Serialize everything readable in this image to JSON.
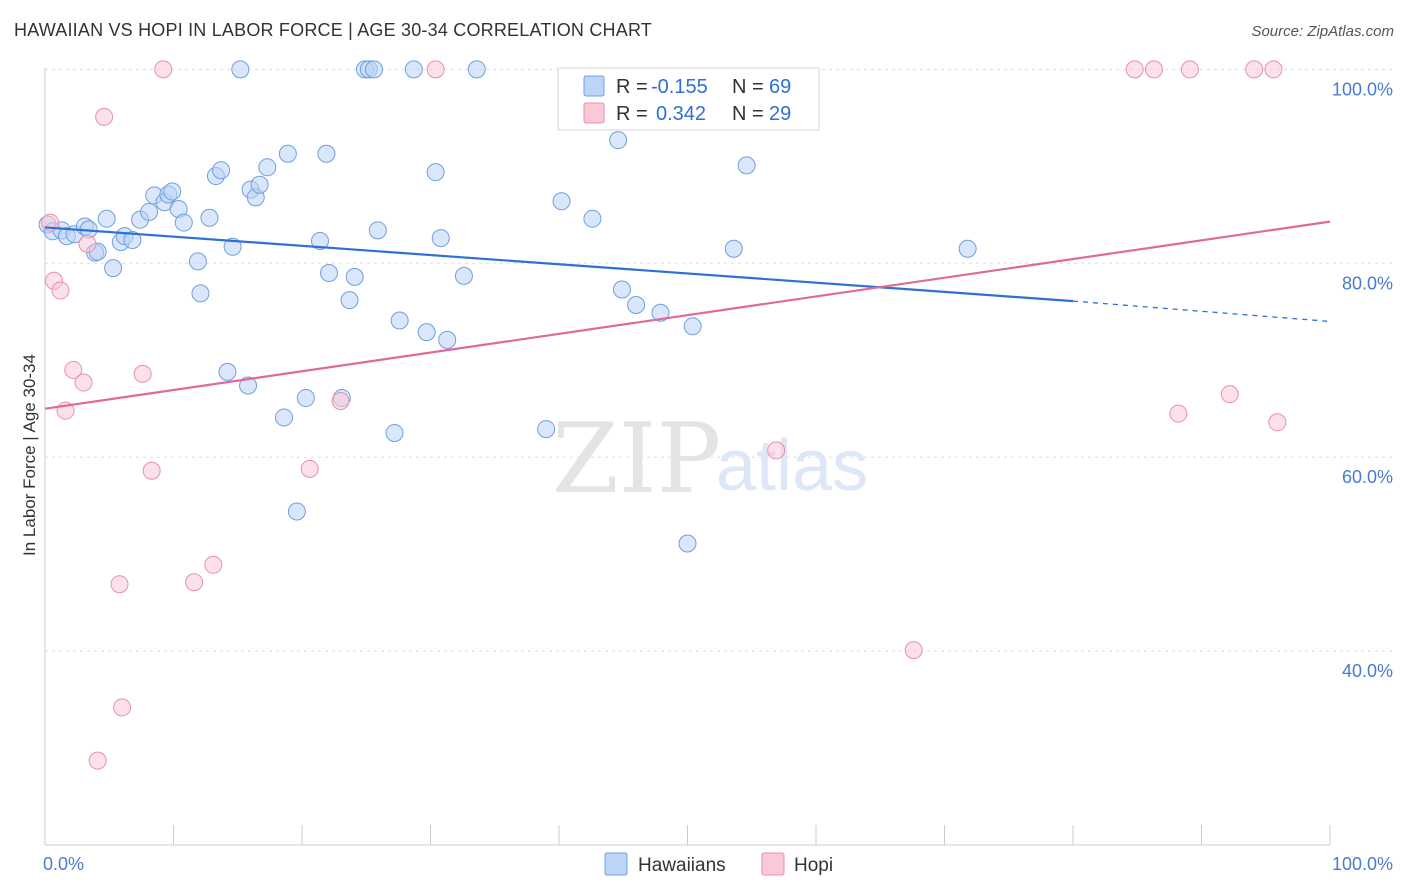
{
  "header": {
    "title": "HAWAIIAN VS HOPI IN LABOR FORCE | AGE 30-34 CORRELATION CHART",
    "source": "Source: ZipAtlas.com"
  },
  "watermark": {
    "zip": "ZIP",
    "atlas": "atlas"
  },
  "legend": {
    "rows": [
      {
        "r_label": "R =",
        "r_value": "-0.155",
        "n_label": "N =",
        "n_value": "69",
        "fill": "#bcd4f6",
        "stroke": "#6f9fe0"
      },
      {
        "r_label": "R =",
        "r_value": "0.342",
        "n_label": "N =",
        "n_value": "29",
        "fill": "#f9c9d8",
        "stroke": "#ea8fae"
      }
    ]
  },
  "bottom_legend": [
    {
      "label": "Hawaiians",
      "fill": "#bcd4f6",
      "stroke": "#6f9fe0"
    },
    {
      "label": "Hopi",
      "fill": "#f9c9d8",
      "stroke": "#ea8fae"
    }
  ],
  "chart_data": {
    "type": "scatter",
    "title": "HAWAIIAN VS HOPI IN LABOR FORCE | AGE 30-34 CORRELATION CHART",
    "xlabel": "",
    "ylabel": "In Labor Force | Age 30-34",
    "xlim": [
      0,
      100
    ],
    "ylim": [
      20,
      102
    ],
    "x_tick_labels": [
      "0.0%",
      "100.0%"
    ],
    "y_ticks": [
      40,
      60,
      80,
      100
    ],
    "y_tick_labels": [
      "40.0%",
      "60.0%",
      "80.0%",
      "100.0%"
    ],
    "grid": true,
    "colors": {
      "hawaiians_line": "#2f6fd6",
      "hopi_line": "#e0689a"
    },
    "series": [
      {
        "name": "Hawaiians",
        "fill": "#bcd4f6",
        "stroke": "#6f9fe0",
        "points": [
          [
            0.2,
            84.0
          ],
          [
            0.6,
            83.3
          ],
          [
            1.3,
            83.4
          ],
          [
            1.7,
            82.8
          ],
          [
            2.3,
            83.0
          ],
          [
            3.1,
            83.8
          ],
          [
            3.4,
            83.5
          ],
          [
            3.9,
            81.1
          ],
          [
            4.1,
            81.2
          ],
          [
            4.8,
            84.6
          ],
          [
            5.3,
            79.5
          ],
          [
            5.9,
            82.2
          ],
          [
            6.2,
            82.8
          ],
          [
            6.8,
            82.4
          ],
          [
            7.4,
            84.5
          ],
          [
            8.1,
            85.3
          ],
          [
            8.5,
            87.0
          ],
          [
            9.3,
            86.3
          ],
          [
            9.6,
            87.1
          ],
          [
            9.9,
            87.4
          ],
          [
            10.4,
            85.6
          ],
          [
            10.8,
            84.2
          ],
          [
            11.9,
            80.2
          ],
          [
            12.1,
            76.9
          ],
          [
            12.8,
            84.7
          ],
          [
            13.3,
            89.0
          ],
          [
            13.7,
            89.6
          ],
          [
            14.2,
            68.8
          ],
          [
            14.6,
            81.7
          ],
          [
            15.2,
            100.0
          ],
          [
            15.8,
            67.4
          ],
          [
            16.0,
            87.6
          ],
          [
            16.4,
            86.8
          ],
          [
            16.7,
            88.1
          ],
          [
            17.3,
            89.9
          ],
          [
            18.6,
            64.1
          ],
          [
            18.9,
            91.3
          ],
          [
            19.6,
            54.4
          ],
          [
            20.3,
            66.1
          ],
          [
            21.4,
            82.3
          ],
          [
            21.9,
            91.3
          ],
          [
            22.1,
            79.0
          ],
          [
            23.1,
            66.1
          ],
          [
            23.7,
            76.2
          ],
          [
            24.1,
            78.6
          ],
          [
            24.9,
            100.0
          ],
          [
            25.2,
            100.0
          ],
          [
            25.6,
            100.0
          ],
          [
            25.9,
            83.4
          ],
          [
            27.2,
            62.5
          ],
          [
            27.6,
            74.1
          ],
          [
            28.7,
            100.0
          ],
          [
            29.7,
            72.9
          ],
          [
            30.4,
            89.4
          ],
          [
            30.8,
            82.6
          ],
          [
            31.3,
            72.1
          ],
          [
            32.6,
            78.7
          ],
          [
            33.6,
            100.0
          ],
          [
            39.0,
            62.9
          ],
          [
            40.2,
            86.4
          ],
          [
            42.6,
            84.6
          ],
          [
            44.6,
            92.7
          ],
          [
            44.9,
            77.3
          ],
          [
            46.0,
            75.7
          ],
          [
            47.9,
            74.9
          ],
          [
            50.0,
            51.1
          ],
          [
            50.4,
            73.5
          ],
          [
            53.6,
            81.5
          ],
          [
            54.6,
            90.1
          ],
          [
            71.8,
            81.5
          ]
        ]
      },
      {
        "name": "Hopi",
        "fill": "#f9c9d8",
        "stroke": "#ea8fae",
        "points": [
          [
            0.4,
            84.2
          ],
          [
            0.7,
            78.2
          ],
          [
            1.2,
            77.2
          ],
          [
            1.6,
            64.8
          ],
          [
            2.2,
            69.0
          ],
          [
            3.0,
            67.7
          ],
          [
            3.3,
            82.0
          ],
          [
            4.1,
            28.7
          ],
          [
            4.6,
            95.1
          ],
          [
            5.8,
            46.9
          ],
          [
            6.0,
            34.2
          ],
          [
            7.6,
            68.6
          ],
          [
            8.3,
            58.6
          ],
          [
            9.2,
            100.0
          ],
          [
            11.6,
            47.1
          ],
          [
            13.1,
            48.9
          ],
          [
            20.6,
            58.8
          ],
          [
            23.0,
            65.8
          ],
          [
            30.4,
            100.0
          ],
          [
            56.9,
            60.7
          ],
          [
            67.6,
            40.1
          ],
          [
            84.8,
            100.0
          ],
          [
            86.3,
            100.0
          ],
          [
            88.2,
            64.5
          ],
          [
            89.1,
            100.0
          ],
          [
            92.2,
            66.5
          ],
          [
            94.1,
            100.0
          ],
          [
            95.6,
            100.0
          ],
          [
            95.9,
            63.6
          ]
        ]
      }
    ],
    "trendlines": [
      {
        "name": "Hawaiians",
        "x_start": 0,
        "y_start": 83.7,
        "x_solid_end": 80,
        "y_solid_end": 76.1,
        "x_end": 100,
        "y_end": 74.0
      },
      {
        "name": "Hopi",
        "x_start": 0,
        "y_start": 65.0,
        "x_end": 100,
        "y_end": 84.3
      }
    ]
  }
}
